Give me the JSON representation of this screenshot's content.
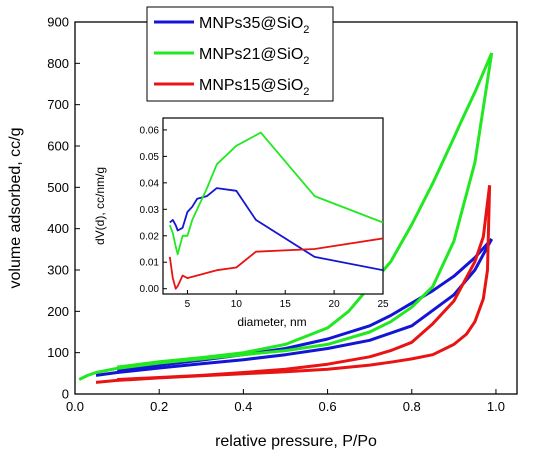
{
  "chart_data": [
    {
      "type": "line",
      "xlabel": "relative pressure, P/Po",
      "ylabel": "volume adsorbed, cc/g",
      "xlim": [
        0.0,
        1.05
      ],
      "ylim": [
        0,
        900
      ],
      "x_ticks": [
        0.0,
        0.2,
        0.4,
        0.6,
        0.8,
        1.0
      ],
      "x_tick_labels": [
        "0.0",
        "0.2",
        "0.4",
        "0.6",
        "0.8",
        "1.0"
      ],
      "y_ticks": [
        0,
        100,
        200,
        300,
        400,
        500,
        600,
        700,
        800,
        900
      ],
      "y_tick_labels": [
        "0",
        "100",
        "200",
        "300",
        "400",
        "500",
        "600",
        "700",
        "800",
        "900"
      ],
      "grid": false,
      "legend_position": "top-left",
      "legend": [
        {
          "base": "MNPs35@SiO",
          "sub": "2",
          "color": "#1414d4"
        },
        {
          "base": "MNPs21@SiO",
          "sub": "2",
          "color": "#22e822"
        },
        {
          "base": "MNPs15@SiO",
          "sub": "2",
          "color": "#e81414"
        }
      ],
      "series": [
        {
          "name": "MNPs35@SiO2",
          "color": "#1414d4",
          "adsorption": {
            "x": [
              0.05,
              0.1,
              0.2,
              0.3,
              0.4,
              0.5,
              0.6,
              0.7,
              0.8,
              0.9,
              0.95,
              0.99
            ],
            "y": [
              45,
              52,
              63,
              73,
              83,
              95,
              110,
              130,
              165,
              240,
              300,
              375
            ]
          },
          "desorption": {
            "x": [
              0.99,
              0.95,
              0.9,
              0.85,
              0.8,
              0.75,
              0.7,
              0.6,
              0.5,
              0.4,
              0.3,
              0.2,
              0.1
            ],
            "y": [
              375,
              330,
              285,
              250,
              220,
              190,
              165,
              133,
              110,
              95,
              82,
              70,
              58
            ]
          }
        },
        {
          "name": "MNPs21@SiO2",
          "color": "#22e822",
          "adsorption": {
            "x": [
              0.01,
              0.03,
              0.05,
              0.1,
              0.2,
              0.3,
              0.4,
              0.5,
              0.6,
              0.7,
              0.75,
              0.8,
              0.85,
              0.9,
              0.95,
              0.99
            ],
            "y": [
              35,
              45,
              52,
              62,
              75,
              85,
              95,
              105,
              120,
              150,
              175,
              210,
              260,
              370,
              560,
              825
            ]
          },
          "desorption": {
            "x": [
              0.99,
              0.95,
              0.92,
              0.9,
              0.85,
              0.8,
              0.75,
              0.7,
              0.65,
              0.6,
              0.5,
              0.4,
              0.3,
              0.2,
              0.1
            ],
            "y": [
              825,
              730,
              665,
              620,
              510,
              410,
              320,
              260,
              200,
              160,
              120,
              100,
              88,
              78,
              65
            ]
          }
        },
        {
          "name": "MNPs15@SiO2",
          "color": "#e81414",
          "adsorption": {
            "x": [
              0.05,
              0.1,
              0.2,
              0.3,
              0.4,
              0.5,
              0.6,
              0.7,
              0.75,
              0.8,
              0.85,
              0.9,
              0.93,
              0.95,
              0.97,
              0.98,
              0.985
            ],
            "y": [
              28,
              33,
              39,
              44,
              49,
              54,
              60,
              70,
              77,
              85,
              95,
              120,
              145,
              175,
              230,
              300,
              505
            ]
          },
          "desorption": {
            "x": [
              0.985,
              0.97,
              0.95,
              0.9,
              0.85,
              0.8,
              0.75,
              0.7,
              0.6,
              0.5,
              0.4,
              0.3,
              0.2,
              0.1
            ],
            "y": [
              505,
              380,
              320,
              225,
              170,
              125,
              105,
              90,
              72,
              60,
              52,
              45,
              40,
              35
            ]
          }
        }
      ]
    },
    {
      "type": "line",
      "xlabel": "diameter, nm",
      "ylabel": "dV(d), cc/nm/g",
      "xlim": [
        2.5,
        25
      ],
      "ylim": [
        -0.002,
        0.0645
      ],
      "x_ticks": [
        5,
        10,
        15,
        20,
        25
      ],
      "x_tick_labels": [
        "5",
        "10",
        "15",
        "20",
        "25"
      ],
      "y_ticks": [
        0.0,
        0.01,
        0.02,
        0.03,
        0.04,
        0.05,
        0.06
      ],
      "y_tick_labels": [
        "0.00",
        "0.01",
        "0.02",
        "0.03",
        "0.04",
        "0.05",
        "0.06"
      ],
      "grid": false,
      "series": [
        {
          "name": "MNPs35@SiO2",
          "color": "#1414d4",
          "x": [
            3.2,
            3.5,
            3.8,
            4.0,
            4.5,
            5.0,
            5.5,
            6.0,
            7.0,
            8.0,
            10.0,
            12.0,
            18.0,
            25.0
          ],
          "y": [
            0.025,
            0.026,
            0.024,
            0.022,
            0.023,
            0.029,
            0.031,
            0.034,
            0.035,
            0.038,
            0.037,
            0.026,
            0.012,
            0.007
          ]
        },
        {
          "name": "MNPs21@SiO2",
          "color": "#22e822",
          "x": [
            3.2,
            3.5,
            3.8,
            4.0,
            4.5,
            5.0,
            5.5,
            6.0,
            7.0,
            8.0,
            10.0,
            12.5,
            18.0,
            25.0
          ],
          "y": [
            0.024,
            0.021,
            0.016,
            0.013,
            0.02,
            0.02,
            0.026,
            0.03,
            0.038,
            0.047,
            0.054,
            0.059,
            0.035,
            0.025
          ]
        },
        {
          "name": "MNPs15@SiO2",
          "color": "#e81414",
          "x": [
            3.2,
            3.5,
            3.8,
            4.0,
            4.5,
            5.0,
            6.0,
            8.0,
            10.0,
            12.0,
            18.0,
            25.0
          ],
          "y": [
            0.012,
            0.004,
            0.0,
            0.001,
            0.005,
            0.004,
            0.005,
            0.007,
            0.008,
            0.014,
            0.015,
            0.019
          ]
        }
      ]
    }
  ]
}
